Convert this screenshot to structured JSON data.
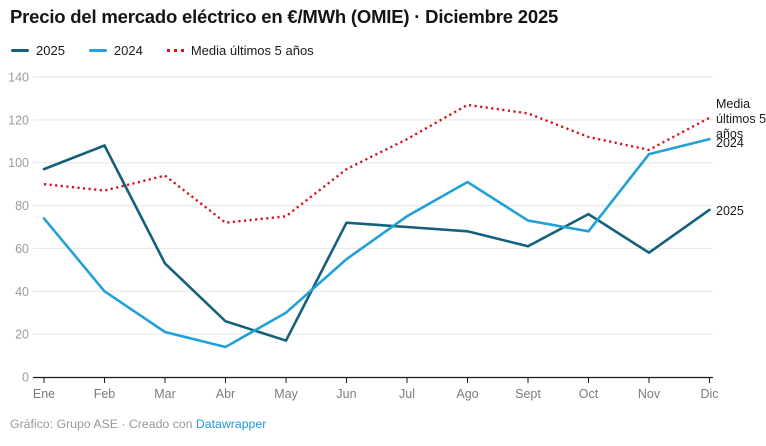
{
  "title": "Precio del mercado eléctrico en €/MWh (OMIE) · Diciembre 2025",
  "legend": [
    {
      "label": "2025",
      "color": "#15607a",
      "style": "solid"
    },
    {
      "label": "2024",
      "color": "#21a1d8",
      "style": "solid"
    },
    {
      "label": "Media últimos 5 años",
      "color": "#d3151c",
      "style": "dotted"
    }
  ],
  "right_labels": {
    "media": "Media últimos 5 años",
    "y2024": "2024",
    "y2025": "2025"
  },
  "footer": {
    "text": "Gráfico: Grupo ASE · Creado con",
    "link_label": "Datawrapper"
  },
  "chart_data": {
    "type": "line",
    "categories": [
      "Ene",
      "Feb",
      "Mar",
      "Abr",
      "May",
      "Jun",
      "Jul",
      "Ago",
      "Sept",
      "Oct",
      "Nov",
      "Dic"
    ],
    "series": [
      {
        "key": "media",
        "name": "Media últimos 5 años",
        "color": "#d3151c",
        "dash": "dotted",
        "values": [
          90,
          87,
          94,
          72,
          75,
          97,
          111,
          127,
          123,
          112,
          106,
          121
        ]
      },
      {
        "key": "y2025",
        "name": "2025",
        "color": "#15607a",
        "dash": "solid",
        "values": [
          97,
          108,
          53,
          26,
          17,
          72,
          70,
          68,
          61,
          76,
          58,
          78
        ]
      },
      {
        "key": "y2024",
        "name": "2024",
        "color": "#21a1d8",
        "dash": "solid",
        "values": [
          74,
          40,
          21,
          14,
          30,
          55,
          75,
          91,
          73,
          68,
          104,
          111
        ]
      }
    ],
    "ylabel": "€/MWh",
    "ylim": [
      0,
      140
    ],
    "yticks": [
      0,
      20,
      40,
      60,
      80,
      100,
      120,
      140
    ],
    "grid": "horizontal",
    "legend_position": "top",
    "colors": {
      "grid": "#e5e5e5",
      "axis": "#1a1a1a",
      "y_tick_label": "#9c9c9c",
      "x_tick_label": "#7c7c7c"
    }
  }
}
